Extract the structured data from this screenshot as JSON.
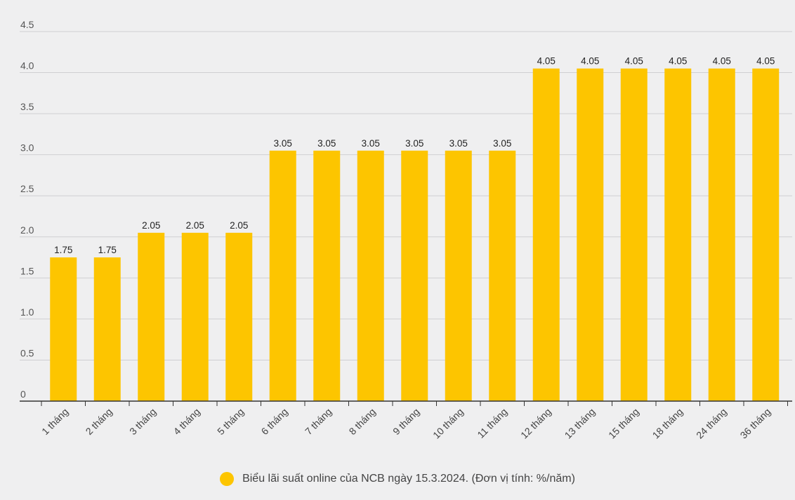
{
  "chart_data": {
    "type": "bar",
    "categories": [
      "1 tháng",
      "2 tháng",
      "3 tháng",
      "4 tháng",
      "5 tháng",
      "6 tháng",
      "7 tháng",
      "8 tháng",
      "9 tháng",
      "10 tháng",
      "11 tháng",
      "12 tháng",
      "13 tháng",
      "15 tháng",
      "18 tháng",
      "24 tháng",
      "36 tháng"
    ],
    "values": [
      1.75,
      1.75,
      2.05,
      2.05,
      2.05,
      3.05,
      3.05,
      3.05,
      3.05,
      3.05,
      3.05,
      4.05,
      4.05,
      4.05,
      4.05,
      4.05,
      4.05
    ],
    "data_labels": [
      "1.75",
      "1.75",
      "2.05",
      "2.05",
      "2.05",
      "3.05",
      "3.05",
      "3.05",
      "3.05",
      "3.05",
      "3.05",
      "4.05",
      "4.05",
      "4.05",
      "4.05",
      "4.05",
      "4.05"
    ],
    "y_ticks": [
      "0",
      "0.5",
      "1.0",
      "1.5",
      "2.0",
      "2.5",
      "3.0",
      "3.5",
      "4.0",
      "4.5"
    ],
    "ylim": [
      0,
      4.5
    ],
    "grid": true,
    "legend_position": "bottom-center",
    "series": [
      {
        "name": "Biểu lãi suất online của NCB ngày 15.3.2024. (Đơn vị tính: %/năm)"
      }
    ],
    "bar_color": "#fdc500",
    "title": "",
    "xlabel": "",
    "ylabel": ""
  }
}
